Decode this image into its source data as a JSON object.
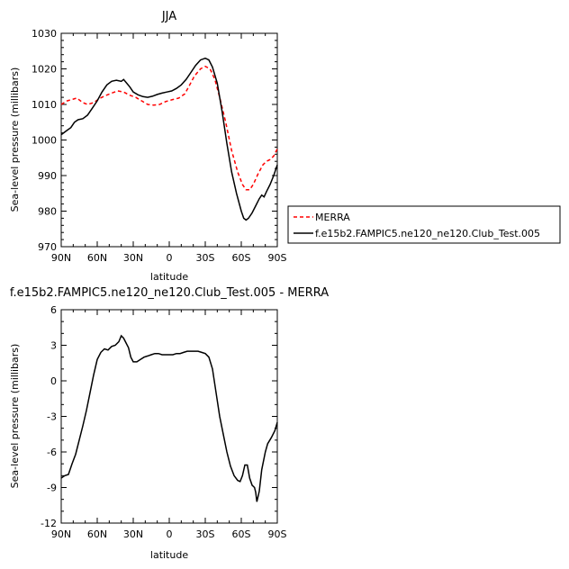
{
  "chart_data": [
    {
      "type": "line",
      "title": "JJA",
      "xlabel": "latitude",
      "ylabel": "Sea-level pressure (millibars)",
      "ylim": [
        970,
        1030
      ],
      "xlim": [
        90,
        -90
      ],
      "yticks": [
        "970",
        "980",
        "990",
        "1000",
        "1010",
        "1020",
        "1030"
      ],
      "xticks": [
        {
          "value": 90,
          "label": "90N"
        },
        {
          "value": 60,
          "label": "60N"
        },
        {
          "value": 30,
          "label": "30N"
        },
        {
          "value": 0,
          "label": "0"
        },
        {
          "value": -30,
          "label": "30S"
        },
        {
          "value": -60,
          "label": "60S"
        },
        {
          "value": -90,
          "label": "90S"
        }
      ],
      "legend": "right",
      "series": [
        {
          "name": "MERRA",
          "color": "#ff0000",
          "dash": true,
          "points": [
            [
              90,
              1010
            ],
            [
              85,
              1011
            ],
            [
              80,
              1011.5
            ],
            [
              77,
              1011.8
            ],
            [
              72,
              1010.5
            ],
            [
              68,
              1010
            ],
            [
              63,
              1010.5
            ],
            [
              58,
              1011.7
            ],
            [
              53,
              1012.5
            ],
            [
              48,
              1013.2
            ],
            [
              43,
              1013.8
            ],
            [
              38,
              1013.5
            ],
            [
              33,
              1012.6
            ],
            [
              28,
              1012
            ],
            [
              23,
              1011
            ],
            [
              18,
              1010
            ],
            [
              13,
              1009.8
            ],
            [
              8,
              1010
            ],
            [
              3,
              1010.8
            ],
            [
              -2,
              1011.3
            ],
            [
              -8,
              1011.8
            ],
            [
              -13,
              1013
            ],
            [
              -17,
              1015.5
            ],
            [
              -21,
              1018
            ],
            [
              -26,
              1020
            ],
            [
              -30,
              1020.7
            ],
            [
              -34,
              1020
            ],
            [
              -38,
              1017
            ],
            [
              -42,
              1012
            ],
            [
              -47,
              1005
            ],
            [
              -52,
              997
            ],
            [
              -57,
              991
            ],
            [
              -61,
              987.5
            ],
            [
              -64,
              986
            ],
            [
              -67,
              986
            ],
            [
              -70,
              987.5
            ],
            [
              -74,
              990.5
            ],
            [
              -78,
              993
            ],
            [
              -81,
              994
            ],
            [
              -84,
              994.5
            ],
            [
              -87,
              995.5
            ],
            [
              -90,
              997.5
            ]
          ]
        },
        {
          "name": "f.e15b2.FAMPIC5.ne120_ne120.Club_Test.005",
          "color": "#000000",
          "dash": false,
          "points": [
            [
              90,
              1001.5
            ],
            [
              86,
              1002.5
            ],
            [
              82,
              1003.5
            ],
            [
              79,
              1005
            ],
            [
              76,
              1005.7
            ],
            [
              72,
              1006
            ],
            [
              68,
              1007
            ],
            [
              64,
              1009
            ],
            [
              60,
              1011
            ],
            [
              56,
              1013.5
            ],
            [
              52,
              1015.5
            ],
            [
              48,
              1016.5
            ],
            [
              44,
              1016.8
            ],
            [
              40,
              1016.5
            ],
            [
              38,
              1017
            ],
            [
              36,
              1016.2
            ],
            [
              33,
              1015
            ],
            [
              30,
              1013.5
            ],
            [
              26,
              1012.7
            ],
            [
              22,
              1012.2
            ],
            [
              18,
              1012
            ],
            [
              14,
              1012.3
            ],
            [
              10,
              1012.8
            ],
            [
              6,
              1013.2
            ],
            [
              2,
              1013.5
            ],
            [
              -2,
              1013.8
            ],
            [
              -6,
              1014.5
            ],
            [
              -10,
              1015.5
            ],
            [
              -14,
              1017
            ],
            [
              -18,
              1019
            ],
            [
              -22,
              1021
            ],
            [
              -26,
              1022.5
            ],
            [
              -30,
              1023
            ],
            [
              -33,
              1022.5
            ],
            [
              -36,
              1020.5
            ],
            [
              -40,
              1016
            ],
            [
              -44,
              1008
            ],
            [
              -48,
              999
            ],
            [
              -52,
              991
            ],
            [
              -56,
              985
            ],
            [
              -60,
              980
            ],
            [
              -62,
              978
            ],
            [
              -64,
              977.5
            ],
            [
              -66,
              978
            ],
            [
              -69,
              979.5
            ],
            [
              -72,
              981.5
            ],
            [
              -75,
              983.5
            ],
            [
              -77,
              984.5
            ],
            [
              -79,
              984
            ],
            [
              -81,
              985.5
            ],
            [
              -84,
              987.5
            ],
            [
              -87,
              990
            ],
            [
              -90,
              993
            ]
          ]
        }
      ]
    },
    {
      "type": "line",
      "title": "f.e15b2.FAMPIC5.ne120_ne120.Club_Test.005 - MERRA",
      "xlabel": "latitude",
      "ylabel": "Sea-level pressure (millibars)",
      "ylim": [
        -12,
        6
      ],
      "xlim": [
        90,
        -90
      ],
      "yticks": [
        "-12",
        "-9",
        "-6",
        "-3",
        "0",
        "3",
        "6"
      ],
      "xticks": [
        {
          "value": 90,
          "label": "90N"
        },
        {
          "value": 60,
          "label": "60N"
        },
        {
          "value": 30,
          "label": "30N"
        },
        {
          "value": 0,
          "label": "0"
        },
        {
          "value": -30,
          "label": "30S"
        },
        {
          "value": -60,
          "label": "60S"
        },
        {
          "value": -90,
          "label": "90S"
        }
      ],
      "series": [
        {
          "color": "#000000",
          "dash": false,
          "points": [
            [
              90,
              -8.2
            ],
            [
              87,
              -8
            ],
            [
              84,
              -7.9
            ],
            [
              81,
              -7
            ],
            [
              78,
              -6.2
            ],
            [
              75,
              -5
            ],
            [
              72,
              -3.8
            ],
            [
              69,
              -2.5
            ],
            [
              66,
              -1
            ],
            [
              63,
              0.5
            ],
            [
              60,
              1.8
            ],
            [
              57,
              2.4
            ],
            [
              54,
              2.7
            ],
            [
              51,
              2.6
            ],
            [
              48,
              2.9
            ],
            [
              45,
              3
            ],
            [
              42,
              3.3
            ],
            [
              40,
              3.8
            ],
            [
              38,
              3.6
            ],
            [
              36,
              3.2
            ],
            [
              34,
              2.8
            ],
            [
              32,
              2
            ],
            [
              30,
              1.6
            ],
            [
              27,
              1.6
            ],
            [
              24,
              1.8
            ],
            [
              21,
              2
            ],
            [
              18,
              2.1
            ],
            [
              15,
              2.2
            ],
            [
              12,
              2.3
            ],
            [
              9,
              2.3
            ],
            [
              6,
              2.2
            ],
            [
              3,
              2.2
            ],
            [
              0,
              2.2
            ],
            [
              -3,
              2.2
            ],
            [
              -6,
              2.3
            ],
            [
              -9,
              2.3
            ],
            [
              -12,
              2.4
            ],
            [
              -15,
              2.5
            ],
            [
              -18,
              2.5
            ],
            [
              -21,
              2.5
            ],
            [
              -24,
              2.5
            ],
            [
              -27,
              2.4
            ],
            [
              -30,
              2.3
            ],
            [
              -33,
              2
            ],
            [
              -36,
              1
            ],
            [
              -39,
              -1
            ],
            [
              -42,
              -3
            ],
            [
              -45,
              -4.5
            ],
            [
              -48,
              -6
            ],
            [
              -51,
              -7.2
            ],
            [
              -54,
              -8
            ],
            [
              -57,
              -8.4
            ],
            [
              -59,
              -8.5
            ],
            [
              -61,
              -8
            ],
            [
              -63,
              -7.1
            ],
            [
              -65,
              -7.1
            ],
            [
              -67,
              -8.2
            ],
            [
              -69,
              -8.8
            ],
            [
              -71,
              -9
            ],
            [
              -72,
              -9.4
            ],
            [
              -73,
              -10.2
            ],
            [
              -75,
              -9.3
            ],
            [
              -77,
              -7.5
            ],
            [
              -80,
              -6
            ],
            [
              -82,
              -5.3
            ],
            [
              -85,
              -4.8
            ],
            [
              -88,
              -4.2
            ],
            [
              -90,
              -3.5
            ]
          ]
        }
      ]
    }
  ]
}
